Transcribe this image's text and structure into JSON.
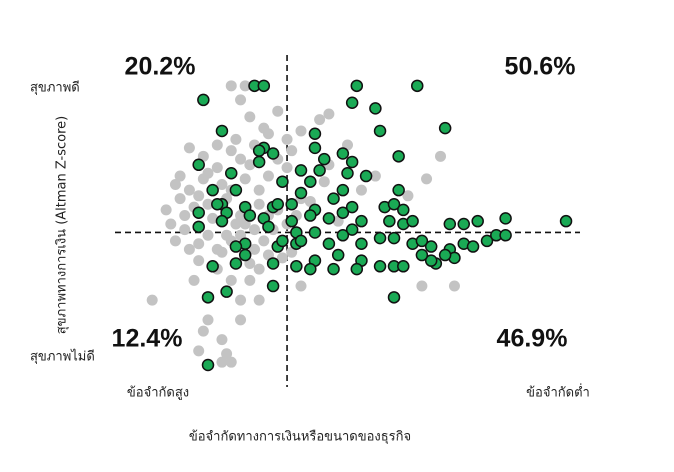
{
  "chart_data": {
    "type": "scatter",
    "y_label": "สุขภาพทางการเงิน (Altman Z-score)",
    "y_top_label": "สุขภาพดี",
    "y_bottom_label": "สุขภาพไม่ดี",
    "x_label": "ข้อจำกัดทางการเงินหรือขนาดของธุรกิจ",
    "x_left_label": "ข้อจำกัดสูง",
    "x_right_label": "ข้อจำกัดต่ำ",
    "quadrants": {
      "values": [
        20.2,
        50.6,
        12.4,
        46.9
      ],
      "value_labels": [
        "20.2%",
        "50.6%",
        "12.4%",
        "46.9%"
      ]
    },
    "reference_lines": {
      "x": 37,
      "y": 47
    },
    "xlim": [
      0,
      100
    ],
    "ylim": [
      0,
      100
    ],
    "series": [
      {
        "color": "#c3c3c3",
        "x": [
          25,
          28,
          27,
          29,
          32,
          16,
          19,
          22,
          13,
          14,
          15,
          13,
          16,
          8,
          19,
          23,
          25,
          23,
          18,
          27,
          31,
          29,
          25,
          22,
          18,
          31,
          32,
          34,
          30,
          27,
          25,
          24,
          28,
          31,
          33,
          29,
          27,
          25,
          35,
          38,
          37,
          40,
          44,
          46,
          56,
          63,
          70,
          67,
          73,
          66,
          53,
          48,
          40,
          37,
          33,
          30,
          28,
          26,
          24,
          20,
          18,
          22,
          17,
          20,
          18,
          16,
          23,
          25,
          31,
          35,
          39,
          40,
          27,
          20,
          24,
          14,
          11,
          33,
          46,
          20,
          22,
          26,
          30,
          15,
          12,
          21,
          27,
          33,
          36,
          29,
          23,
          19,
          17,
          38,
          42,
          45,
          50,
          35,
          37
        ],
        "values": [
          99,
          99,
          94,
          88,
          84,
          77,
          74,
          78,
          64,
          59,
          53,
          44,
          41,
          23,
          12,
          9,
          1,
          1,
          5,
          16,
          23,
          30,
          30,
          34,
          37,
          34,
          44,
          48,
          48,
          46,
          44,
          59,
          66,
          62,
          67,
          71,
          73,
          76,
          73,
          76,
          80,
          83,
          87,
          71,
          67,
          60,
          74,
          66,
          28,
          28,
          62,
          51,
          59,
          50,
          39,
          41,
          50,
          50,
          46,
          46,
          43,
          41,
          30,
          57,
          60,
          62,
          64,
          62,
          57,
          55,
          53,
          28,
          23,
          16,
          4,
          67,
          55,
          82,
          89,
          68,
          70,
          80,
          78,
          48,
          50,
          52,
          53,
          53,
          38,
          36,
          40,
          66,
          56,
          40,
          58,
          65,
          78,
          90,
          70
        ]
      },
      {
        "color": "#1aaa55",
        "x": [
          30,
          32,
          52,
          65,
          19,
          51,
          56,
          71,
          57,
          23,
          43,
          32,
          31,
          34,
          43,
          49,
          51,
          61,
          45,
          44,
          31,
          18,
          40,
          25,
          50,
          42,
          21,
          40,
          36,
          26,
          49,
          54,
          61,
          23,
          22,
          28,
          24,
          34,
          35,
          38,
          47,
          49,
          51,
          43,
          58,
          60,
          62,
          18,
          18,
          23,
          29,
          32,
          42,
          46,
          38,
          53,
          59,
          62,
          64,
          72,
          75,
          78,
          84,
          97,
          39,
          43,
          51,
          49,
          57,
          60,
          64,
          66,
          68,
          72,
          75,
          77,
          80,
          82,
          84,
          73,
          71,
          69,
          68,
          66,
          60,
          57,
          53,
          48,
          43,
          42,
          39,
          39,
          28,
          26,
          26,
          28,
          35,
          34,
          34,
          24,
          20,
          21,
          20,
          60,
          62,
          52,
          47,
          36,
          40,
          46,
          53,
          33
        ],
        "values": [
          99,
          99,
          99,
          99,
          94,
          93,
          91,
          84,
          83,
          83,
          82,
          77,
          76,
          75,
          77,
          75,
          72,
          74,
          73,
          69,
          72,
          71,
          69,
          68,
          68,
          65,
          62,
          61,
          65,
          62,
          62,
          67,
          62,
          57,
          57,
          56,
          54,
          56,
          57,
          57,
          59,
          54,
          56,
          55,
          56,
          57,
          55,
          54,
          49,
          51,
          53,
          52,
          53,
          52,
          51,
          51,
          51,
          50,
          51,
          50,
          50,
          51,
          52,
          51,
          47,
          47,
          48,
          46,
          45,
          45,
          43,
          44,
          42,
          41,
          43,
          42,
          44,
          46,
          46,
          38,
          39,
          36,
          37,
          39,
          35,
          35,
          37,
          39,
          37,
          34,
          35,
          43,
          43,
          42,
          36,
          39,
          42,
          36,
          28,
          26,
          24,
          35,
          0,
          24,
          35,
          34,
          34,
          44,
          44,
          43,
          43,
          49
        ]
      }
    ]
  }
}
